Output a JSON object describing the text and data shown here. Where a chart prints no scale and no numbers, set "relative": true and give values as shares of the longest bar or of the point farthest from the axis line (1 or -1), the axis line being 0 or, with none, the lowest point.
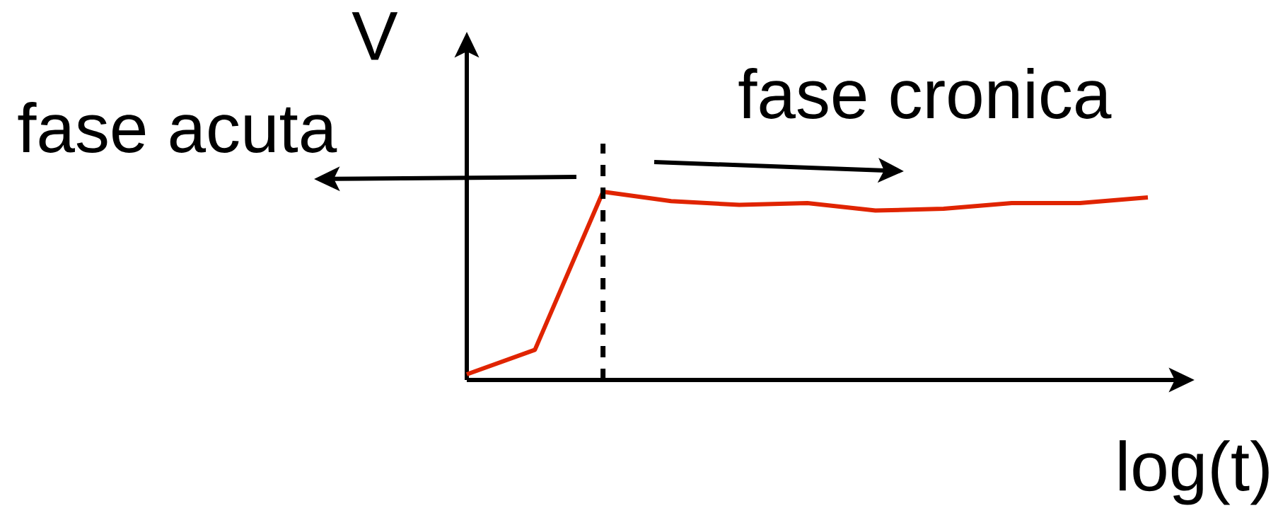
{
  "chart_data": {
    "type": "line",
    "xlabel": "log(t)",
    "ylabel": "V",
    "annotations": [
      "fase acuta",
      "fase cronica"
    ],
    "categories": [
      null,
      null,
      null,
      null,
      null,
      null,
      null,
      null,
      null,
      null,
      null
    ],
    "relative": true,
    "series": [
      {
        "color": "#e02400",
        "values": [
          0.03,
          0.16,
          1,
          0.95,
          0.93,
          0.94,
          0.9,
          0.91,
          0.94,
          0.94,
          0.97
        ]
      }
    ]
  }
}
